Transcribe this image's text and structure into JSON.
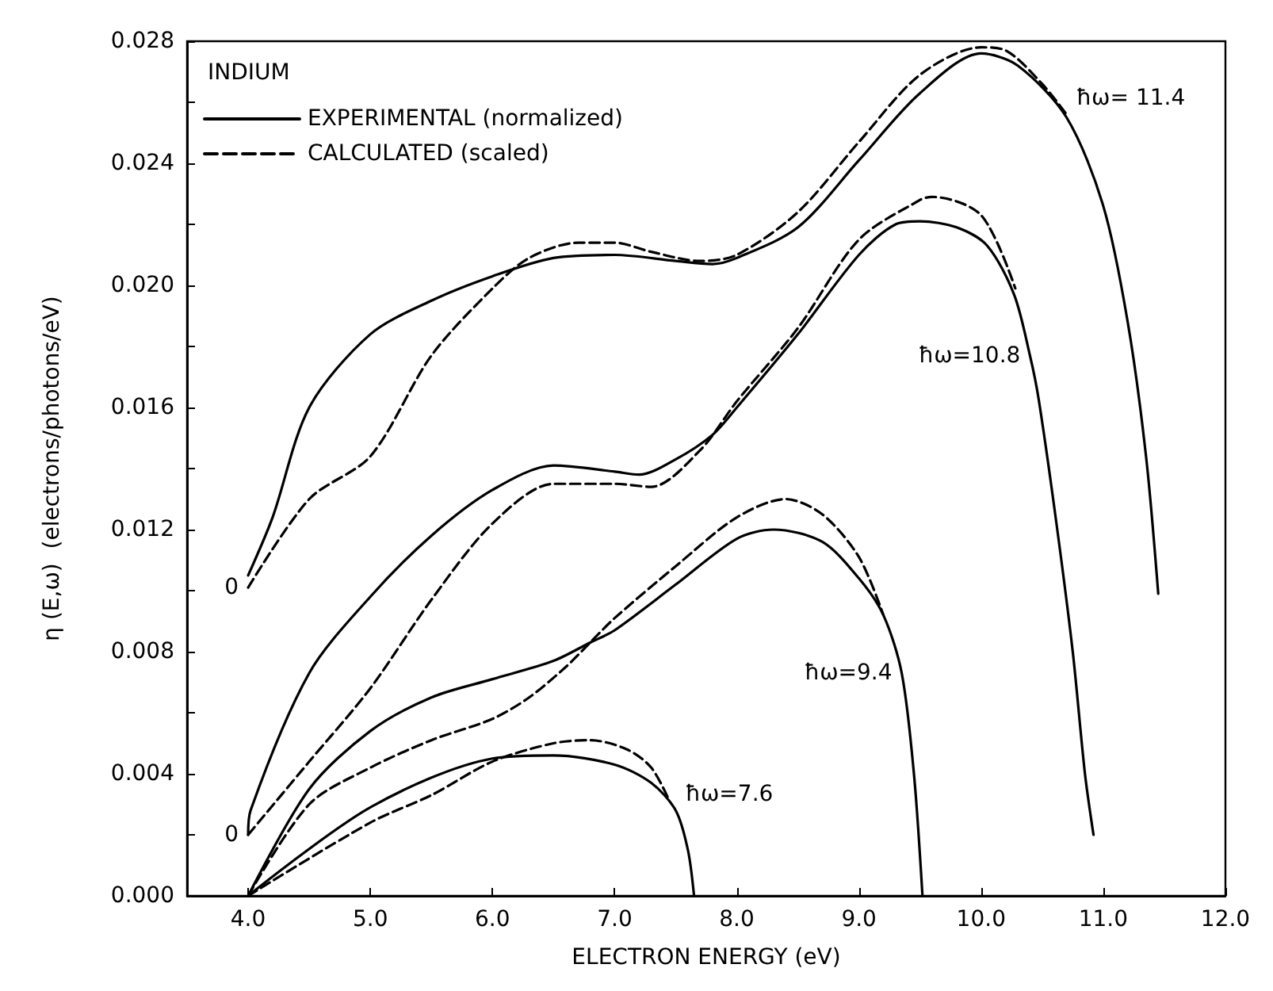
{
  "chart_data": {
    "type": "line",
    "legend_title": "INDIUM",
    "xlabel": "ELECTRON ENERGY (eV)",
    "ylabel": "η (E,ω)  (electrons/photons/eV)",
    "legend": "top left",
    "grid": false,
    "xlim": [
      3.5,
      12.0
    ],
    "xticks": [
      {
        "value": 4,
        "label": "4.0"
      },
      {
        "value": 5,
        "label": "5.0"
      },
      {
        "value": 6,
        "label": "6.0"
      },
      {
        "value": 7,
        "label": "7.0"
      },
      {
        "value": 8,
        "label": "8.0"
      },
      {
        "value": 9,
        "label": "9.0"
      },
      {
        "value": 10,
        "label": "10.0"
      },
      {
        "value": 11,
        "label": "11.0"
      },
      {
        "value": 12,
        "label": "12.0"
      }
    ],
    "ylim": [
      0,
      0.028
    ],
    "yticks": [
      {
        "value": 0,
        "label": "0.000"
      },
      {
        "value": 0.002,
        "label": null
      },
      {
        "value": 0.004,
        "label": "0.004"
      },
      {
        "value": 0.006,
        "label": null
      },
      {
        "value": 0.008,
        "label": "0.008"
      },
      {
        "value": 0.01,
        "label": null
      },
      {
        "value": 0.012,
        "label": "0.012"
      },
      {
        "value": 0.014,
        "label": null
      },
      {
        "value": 0.016,
        "label": "0.016"
      },
      {
        "value": 0.018,
        "label": null
      },
      {
        "value": 0.02,
        "label": "0.020"
      },
      {
        "value": 0.022,
        "label": null
      },
      {
        "value": 0.024,
        "label": "0.024"
      },
      {
        "value": 0.026,
        "label": null
      },
      {
        "value": 0.028,
        "label": "0.028"
      }
    ],
    "annotations": [
      {
        "text": "ħω= 11.4",
        "x": 10.7,
        "y": 0.0256
      },
      {
        "text": "ħω=10.8",
        "x": 10.4,
        "y": 0.0177
      },
      {
        "text": "ħω=9.4",
        "x": 9.35,
        "y": 0.0073
      },
      {
        "text": "ħω=7.6",
        "x": 7.5,
        "y": 0.0028
      },
      {
        "text": "0",
        "x": 4.0,
        "y": 0.0101
      },
      {
        "text": "0",
        "x": 4.0,
        "y": 0.002
      }
    ],
    "series": [
      {
        "name": "EXPERIMENTAL (normalized)",
        "color": "#000000",
        "line_style": "solid",
        "x": [
          4.0,
          4.2,
          4.5,
          5.0,
          5.5,
          6.0,
          6.5,
          7.0,
          7.5,
          7.8,
          8.0,
          8.5,
          9.0,
          9.5,
          10.0,
          10.3,
          10.7,
          11.0,
          11.2,
          11.35,
          11.45
        ],
        "values": [
          0.0105,
          0.0124,
          0.016,
          0.0184,
          0.0195,
          0.0203,
          0.0209,
          0.021,
          0.0208,
          0.0207,
          0.0209,
          0.0219,
          0.0241,
          0.0263,
          0.0276,
          0.0272,
          0.0255,
          0.0226,
          0.0188,
          0.0144,
          0.0099
        ]
      },
      {
        "name": "CALCULATED (scaled)",
        "color": "#000000",
        "line_style": "dashed",
        "x": [
          4.0,
          4.5,
          5.0,
          5.5,
          6.0,
          6.3,
          6.7,
          7.0,
          7.3,
          7.7,
          8.0,
          8.5,
          9.0,
          9.5,
          10.0,
          10.2,
          10.5,
          10.7
        ],
        "values": [
          0.0101,
          0.013,
          0.0144,
          0.0177,
          0.0199,
          0.0209,
          0.0214,
          0.0214,
          0.0211,
          0.0208,
          0.021,
          0.0224,
          0.0247,
          0.0269,
          0.0278,
          0.0277,
          0.0266,
          0.0256
        ]
      },
      {
        "color": "#000000",
        "line_style": "solid",
        "x": [
          4.0,
          4.02,
          4.5,
          5.0,
          5.5,
          6.0,
          6.5,
          7.0,
          7.2,
          7.5,
          7.8,
          8.0,
          8.5,
          9.0,
          9.3,
          9.5,
          9.8,
          10.05,
          10.27,
          10.4,
          10.47,
          10.61,
          10.75,
          10.85,
          10.92
        ],
        "values": [
          0.002,
          0.0028,
          0.0073,
          0.0098,
          0.0118,
          0.0133,
          0.0141,
          0.0139,
          0.0138,
          0.0143,
          0.0151,
          0.016,
          0.0184,
          0.021,
          0.022,
          0.0221,
          0.0219,
          0.0213,
          0.0197,
          0.0177,
          0.0163,
          0.0124,
          0.008,
          0.004,
          0.002
        ]
      },
      {
        "color": "#000000",
        "line_style": "dashed",
        "x": [
          4.0,
          4.5,
          5.0,
          5.5,
          6.0,
          6.5,
          7.0,
          7.3,
          7.7,
          8.0,
          8.5,
          9.0,
          9.5,
          9.6,
          10.0,
          10.28
        ],
        "values": [
          0.002,
          0.0044,
          0.0068,
          0.0097,
          0.0122,
          0.0135,
          0.0135,
          0.0134,
          0.0146,
          0.0162,
          0.0186,
          0.0215,
          0.0228,
          0.0229,
          0.0223,
          0.0199
        ]
      },
      {
        "color": "#000000",
        "line_style": "solid",
        "x": [
          4.0,
          4.5,
          5.0,
          5.5,
          6.0,
          6.5,
          6.8,
          7.0,
          7.5,
          8.0,
          8.3,
          8.7,
          9.0,
          9.2,
          9.35,
          9.45,
          9.52
        ],
        "values": [
          0,
          0.0035,
          0.0054,
          0.0065,
          0.0071,
          0.0077,
          0.0083,
          0.0087,
          0.0102,
          0.0117,
          0.012,
          0.0116,
          0.0104,
          0.0092,
          0.0073,
          0.004,
          0
        ]
      },
      {
        "color": "#000000",
        "line_style": "dashed",
        "x": [
          4.0,
          4.5,
          5.0,
          5.5,
          6.0,
          6.3,
          6.6,
          6.8,
          7.0,
          7.5,
          8.0,
          8.4,
          8.7,
          9.0,
          9.2
        ],
        "values": [
          0,
          0.003,
          0.0042,
          0.0051,
          0.0058,
          0.0065,
          0.0075,
          0.0083,
          0.0091,
          0.0108,
          0.0124,
          0.013,
          0.0125,
          0.0111,
          0.0092
        ]
      },
      {
        "color": "#000000",
        "line_style": "solid",
        "x": [
          4.0,
          5.0,
          6.0,
          6.5,
          7.0,
          7.3,
          7.5,
          7.6,
          7.65
        ],
        "values": [
          0,
          0.0029,
          0.0045,
          0.0046,
          0.0043,
          0.0037,
          0.0028,
          0.0015,
          0
        ]
      },
      {
        "color": "#000000",
        "line_style": "dashed",
        "x": [
          4.0,
          5.0,
          5.5,
          6.0,
          6.5,
          6.8,
          7.1,
          7.3,
          7.45
        ],
        "values": [
          0,
          0.0024,
          0.0033,
          0.0044,
          0.005,
          0.0051,
          0.0048,
          0.0042,
          0.0031
        ]
      }
    ]
  }
}
